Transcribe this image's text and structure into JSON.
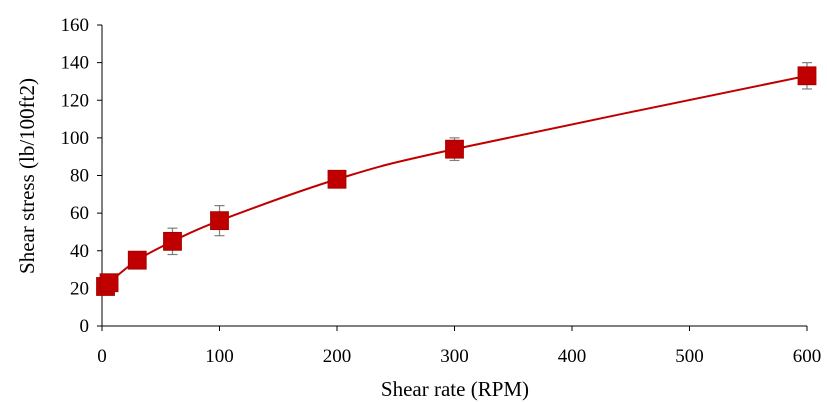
{
  "chart_data": {
    "type": "scatter",
    "title": "",
    "xlabel": "Shear rate (RPM)",
    "ylabel": "Shear stress (lb/100ft2)",
    "xlim": [
      0,
      600
    ],
    "ylim": [
      0,
      160
    ],
    "xticks": [
      0,
      100,
      200,
      300,
      400,
      500,
      600
    ],
    "yticks": [
      0,
      20,
      40,
      60,
      80,
      100,
      120,
      140,
      160
    ],
    "grid": false,
    "legend": "none",
    "colors": {
      "series": "#c00000",
      "error_bars": "#7f7f7f",
      "axis": "#000000"
    },
    "series": [
      {
        "marker": "square",
        "trendline": "smooth",
        "x": [
          3,
          6,
          30,
          60,
          100,
          200,
          300,
          600
        ],
        "y": [
          21,
          23,
          35,
          45,
          56,
          78,
          94,
          133
        ],
        "error": [
          1,
          1,
          2,
          7,
          8,
          3,
          6,
          7
        ]
      }
    ]
  }
}
